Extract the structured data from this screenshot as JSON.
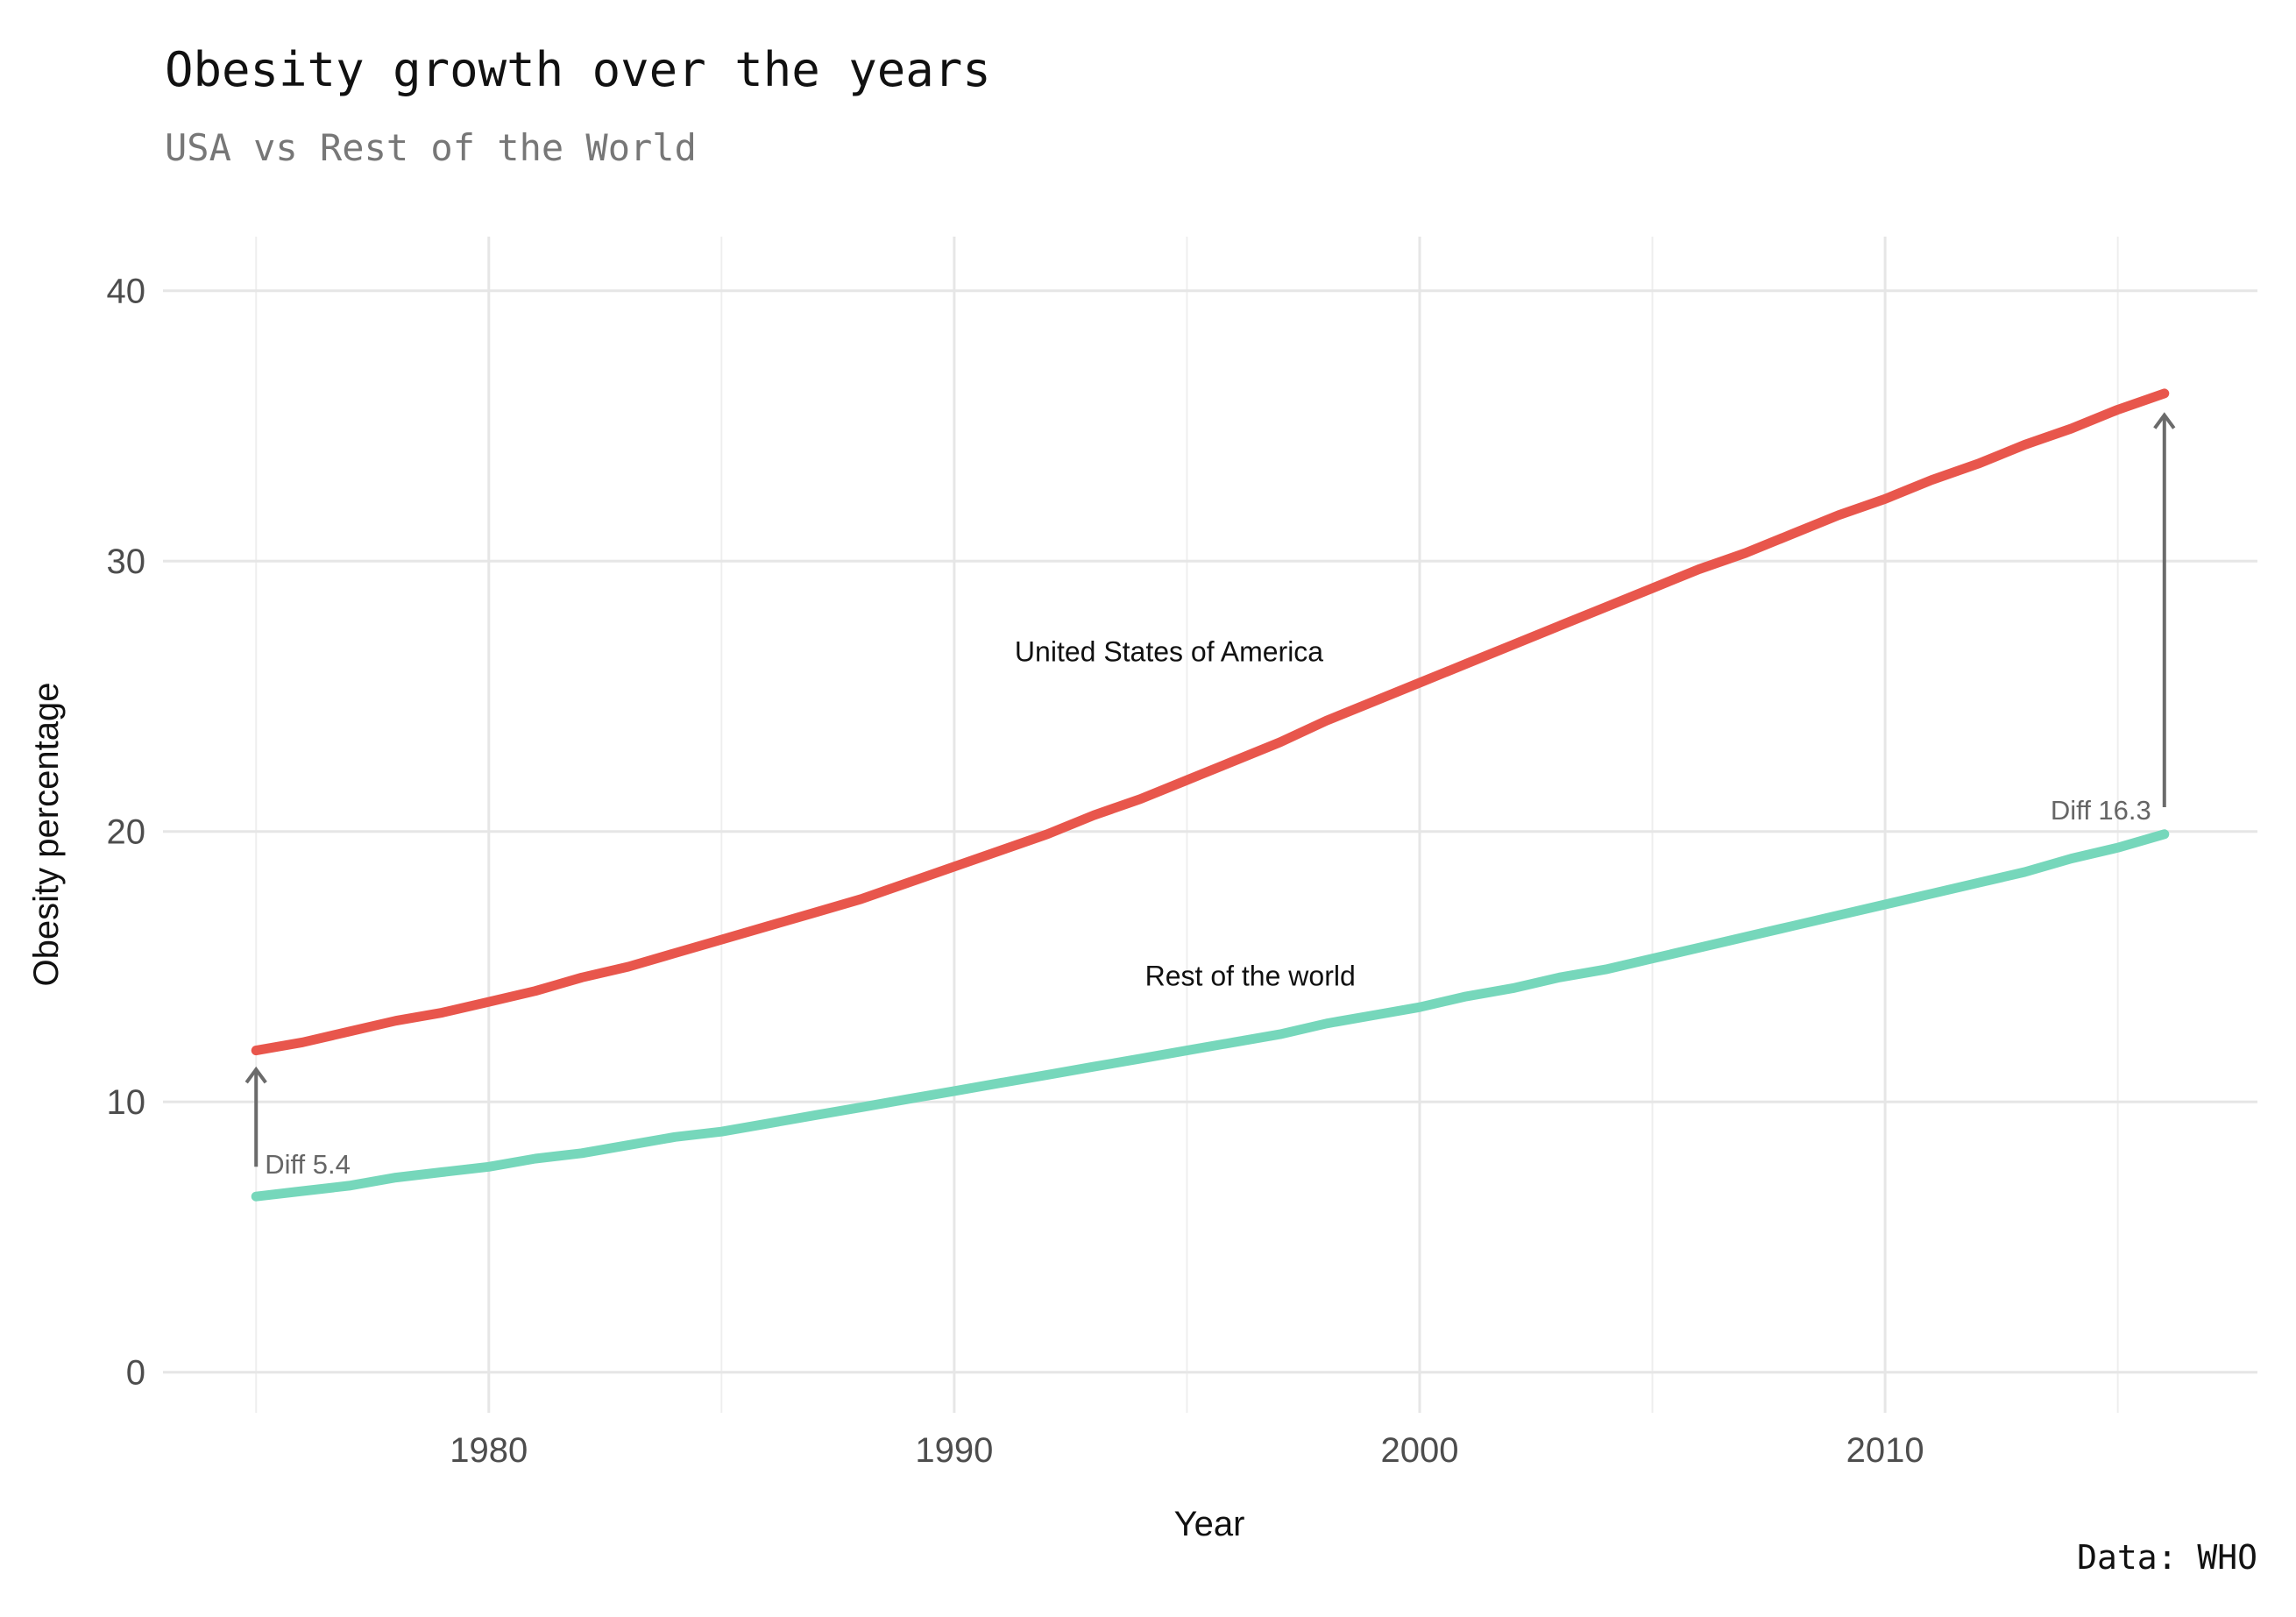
{
  "chart_data": {
    "type": "line",
    "title": "Obesity growth over the years",
    "subtitle": "USA vs Rest of the World",
    "xlabel": "Year",
    "ylabel": "Obesity percentage",
    "caption": "Data: WHO",
    "xlim": [
      1973,
      2018
    ],
    "ylim": [
      -1.5,
      42
    ],
    "x_ticks": [
      1980,
      1990,
      2000,
      2010
    ],
    "x_minor": [
      1975,
      1985,
      1995,
      2005,
      2015
    ],
    "y_ticks": [
      0,
      10,
      20,
      30,
      40
    ],
    "grid": true,
    "legend": "none",
    "x": [
      1975,
      1976,
      1977,
      1978,
      1979,
      1980,
      1981,
      1982,
      1983,
      1984,
      1985,
      1986,
      1987,
      1988,
      1989,
      1990,
      1991,
      1992,
      1993,
      1994,
      1995,
      1996,
      1997,
      1998,
      1999,
      2000,
      2001,
      2002,
      2003,
      2004,
      2005,
      2006,
      2007,
      2008,
      2009,
      2010,
      2011,
      2012,
      2013,
      2014,
      2015,
      2016
    ],
    "series": [
      {
        "name": "United States of America",
        "color": "#e8564c",
        "values": [
          11.9,
          12.2,
          12.6,
          13.0,
          13.3,
          13.7,
          14.1,
          14.6,
          15.0,
          15.5,
          16.0,
          16.5,
          17.0,
          17.5,
          18.1,
          18.7,
          19.3,
          19.9,
          20.6,
          21.2,
          21.9,
          22.6,
          23.3,
          24.1,
          24.8,
          25.5,
          26.2,
          26.9,
          27.6,
          28.3,
          29.0,
          29.7,
          30.3,
          31.0,
          31.7,
          32.3,
          33.0,
          33.6,
          34.3,
          34.9,
          35.6,
          36.2
        ]
      },
      {
        "name": "Rest of the world",
        "color": "#76d7bb",
        "values": [
          6.5,
          6.7,
          6.9,
          7.2,
          7.4,
          7.6,
          7.9,
          8.1,
          8.4,
          8.7,
          8.9,
          9.2,
          9.5,
          9.8,
          10.1,
          10.4,
          10.7,
          11.0,
          11.3,
          11.6,
          11.9,
          12.2,
          12.5,
          12.9,
          13.2,
          13.5,
          13.9,
          14.2,
          14.6,
          14.9,
          15.3,
          15.7,
          16.1,
          16.5,
          16.9,
          17.3,
          17.7,
          18.1,
          18.5,
          19.0,
          19.4,
          19.9
        ]
      }
    ],
    "annotations": [
      {
        "text": "United States of America",
        "x": 1991.3,
        "y": 26.3,
        "anchor": "start"
      },
      {
        "text": "Rest of the world",
        "x": 1994.1,
        "y": 14.3,
        "anchor": "start"
      }
    ],
    "diff_arrows": [
      {
        "label": "Diff 5.4",
        "x": 1975,
        "y_from": 7.6,
        "y_to": 11.2,
        "label_side": "right",
        "label_y": 7.7
      },
      {
        "label": "Diff 16.3",
        "x": 2016,
        "y_from": 20.9,
        "y_to": 35.4,
        "label_side": "left",
        "label_y": 20.8
      }
    ],
    "arrow_color": "#6b6b6b"
  }
}
